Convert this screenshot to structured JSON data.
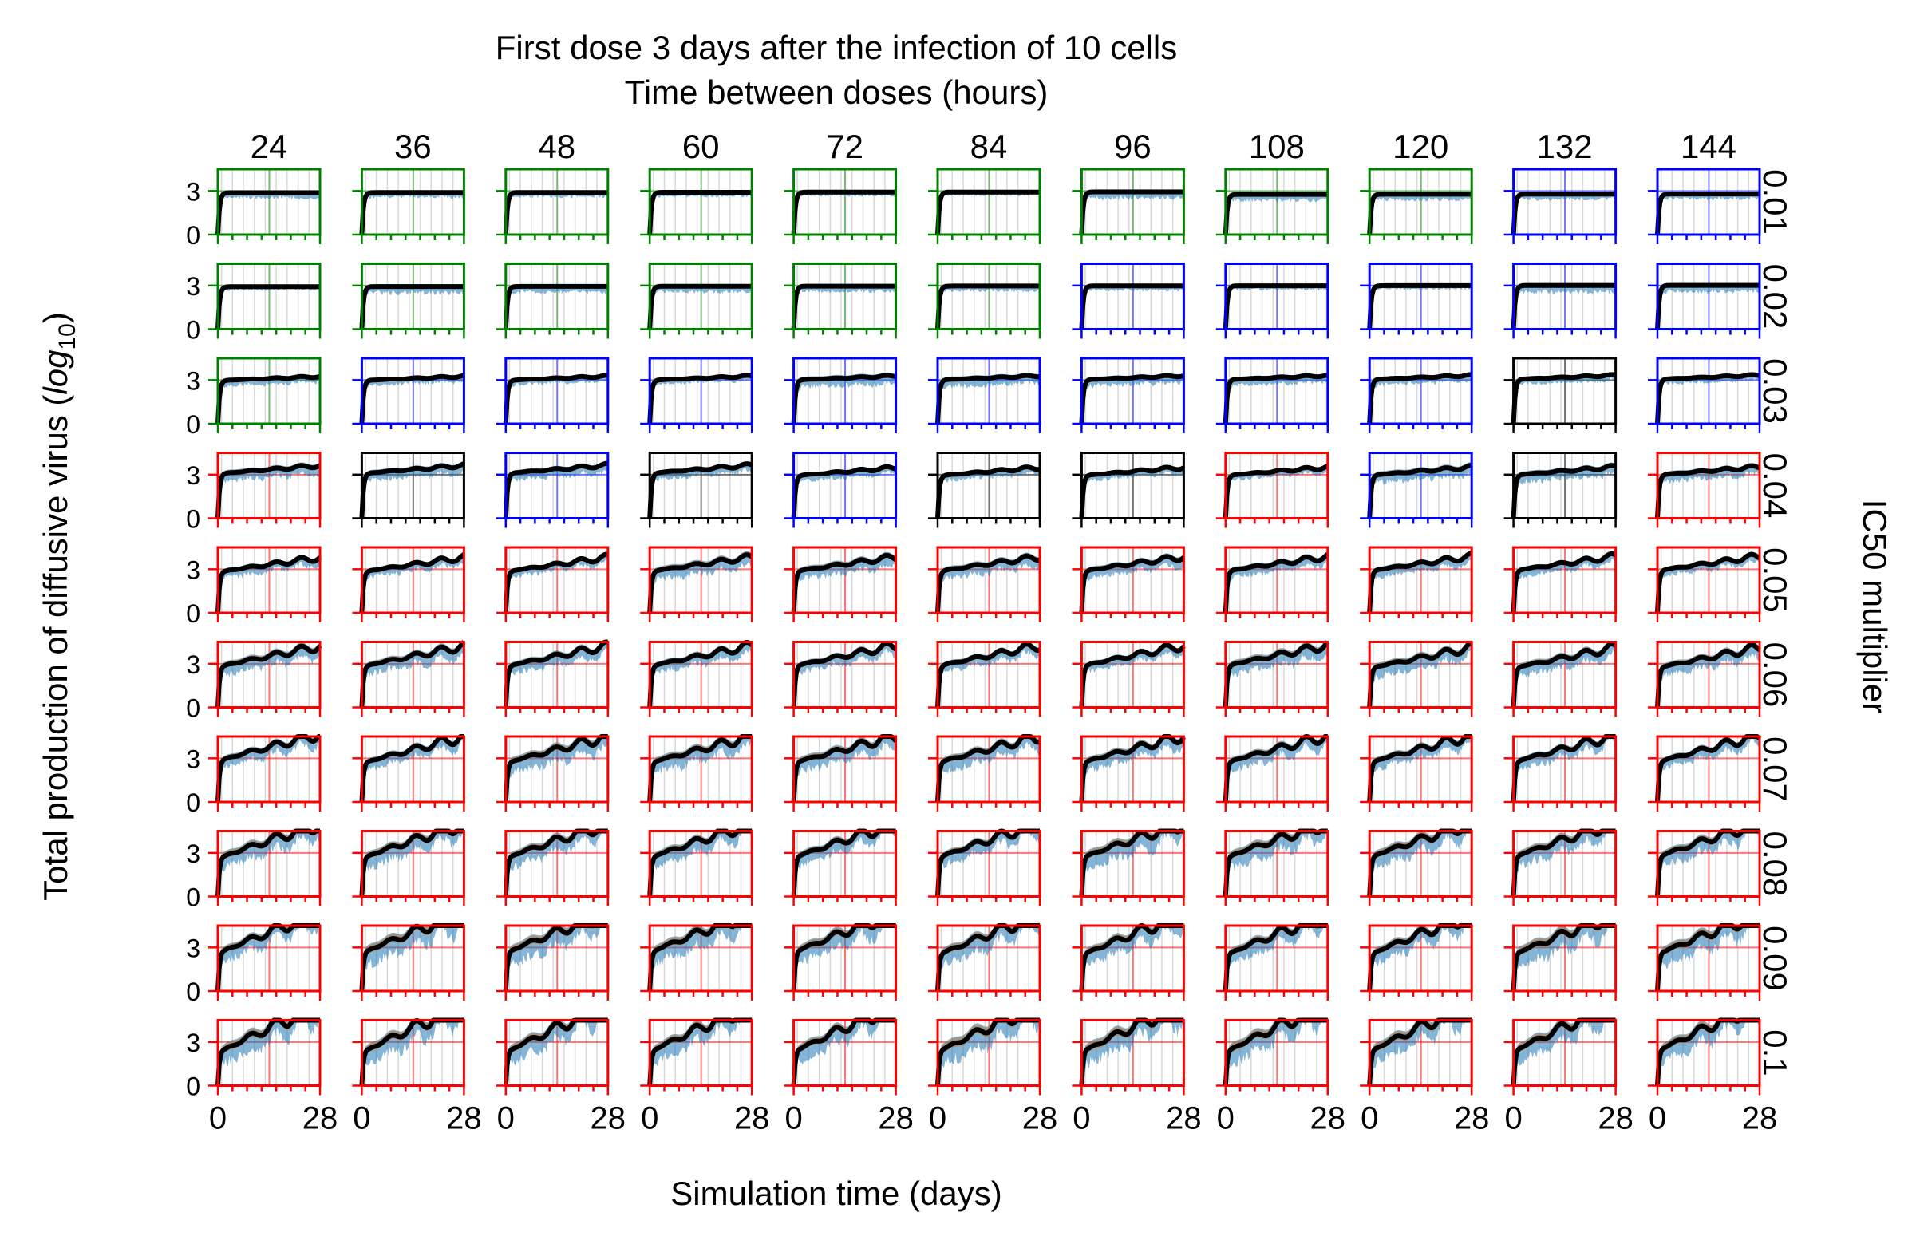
{
  "chart_data": {
    "type": "line",
    "title": "First dose 3 days after the infection of 10 cells",
    "subtitle": "Time between doses (hours)",
    "xlabel": "Simulation time (days)",
    "ylabel": "Total production of diffusive virus (log10)",
    "ylabel_parts": {
      "prefix": "Total production of diffusive virus (",
      "log": "log",
      "sub": "10",
      "suffix": ")"
    },
    "right_label": "IC50 multiplier",
    "columns": [
      "24",
      "36",
      "48",
      "60",
      "72",
      "84",
      "96",
      "108",
      "120",
      "132",
      "144"
    ],
    "rows": [
      "0.01",
      "0.02",
      "0.03",
      "0.04",
      "0.05",
      "0.06",
      "0.07",
      "0.08",
      "0.09",
      "0.1"
    ],
    "x_tick_labels": [
      "0",
      "28"
    ],
    "y_tick_labels": [
      "0",
      "3"
    ],
    "xlim": [
      0,
      28
    ],
    "ylim": [
      0,
      4.5
    ],
    "reference_line_y": 3,
    "first_dose_day": 3,
    "border_colors": {
      "G": "#008000",
      "B": "#0000ff",
      "K": "#000000",
      "R": "#ff0000"
    },
    "panel_border_codes": [
      "GGGGGGGGGBB",
      "GGGGGGBBBBB",
      "GBBBBBBBBKB",
      "RKBKBKKRBKR",
      "RRRRRRRRRRR",
      "RRRRRRRRRRR",
      "RRRRRRRRRRR",
      "RRRRRRRRRRR",
      "RRRRRRRRRRR",
      "RRRRRRRRRRR"
    ],
    "series_colors": {
      "median": "#000000",
      "band_1": "#1f77b4",
      "band_2": "#ff7f0e",
      "band_3": "#7f7f7f"
    },
    "row_curve_parameters": [
      {
        "row": "0.01",
        "plateau": 2.85,
        "slope_per_day": 0.0
      },
      {
        "row": "0.02",
        "plateau": 3.0,
        "slope_per_day": 0.0
      },
      {
        "row": "0.03",
        "plateau": 3.0,
        "slope_per_day": 0.01
      },
      {
        "row": "0.04",
        "plateau": 3.05,
        "slope_per_day": 0.02
      },
      {
        "row": "0.05",
        "plateau": 2.95,
        "slope_per_day": 0.035
      },
      {
        "row": "0.06",
        "plateau": 2.9,
        "slope_per_day": 0.05
      },
      {
        "row": "0.07",
        "plateau": 2.9,
        "slope_per_day": 0.065
      },
      {
        "row": "0.08",
        "plateau": 2.85,
        "slope_per_day": 0.085
      },
      {
        "row": "0.09",
        "plateau": 2.8,
        "slope_per_day": 0.1
      },
      {
        "row": "0.1",
        "plateau": 2.6,
        "slope_per_day": 0.12
      }
    ],
    "cap": 4.5
  }
}
